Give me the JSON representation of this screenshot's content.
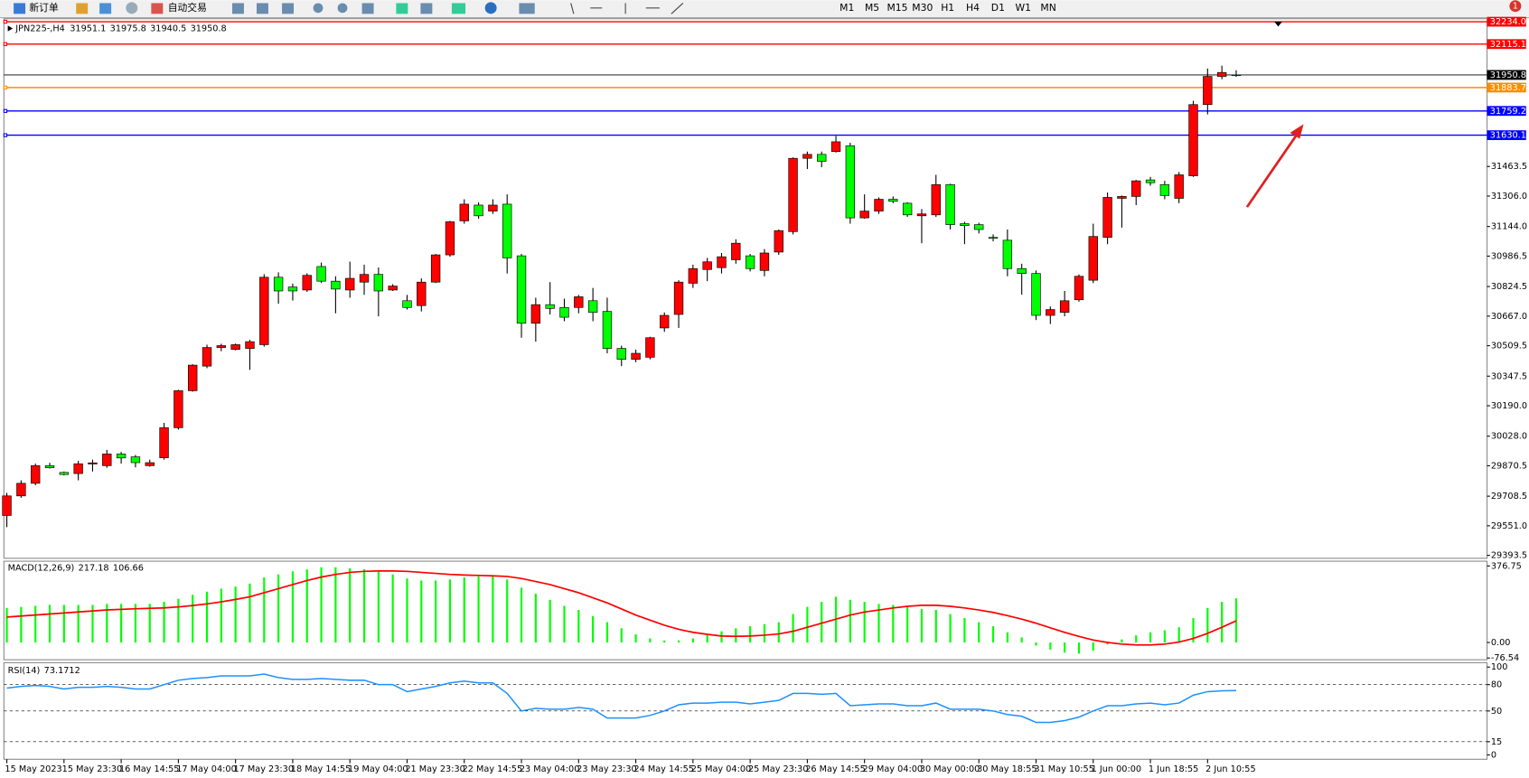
{
  "toolbar": {
    "buttons": [
      "新订单",
      "自动交易"
    ],
    "timeframes": [
      "M1",
      "M5",
      "M15",
      "M30",
      "H1",
      "H4",
      "D1",
      "W1",
      "MN"
    ],
    "badge": 1
  },
  "chart_data": [
    {
      "type": "candlestick",
      "title": "JPN225-,H4",
      "categories": [
        "15 May 2023",
        null,
        null,
        null,
        "15 May 23:30",
        null,
        null,
        null,
        "16 May 14:55",
        null,
        null,
        null,
        "17 May 04:00",
        null,
        null,
        null,
        "17 May 23:30",
        null,
        null,
        null,
        "18 May 14:55",
        null,
        null,
        null,
        "19 May 04:00",
        null,
        null,
        null,
        "21 May 23:30",
        null,
        null,
        null,
        "22 May 14:55",
        null,
        null,
        null,
        "23 May 04:00",
        null,
        null,
        null,
        "23 May 23:30",
        null,
        null,
        null,
        "24 May 14:55",
        null,
        null,
        null,
        "25 May 04:00",
        null,
        null,
        null,
        "25 May 23:30",
        null,
        null,
        null,
        "26 May 14:55",
        null,
        null,
        null,
        "29 May 04:00",
        null,
        null,
        null,
        "30 May 00:00",
        null,
        null,
        null,
        "30 May 18:55",
        null,
        null,
        null,
        "31 May 10:55",
        null,
        null,
        null,
        "1 Jun 00:00",
        null,
        null,
        null,
        "1 Jun 18:55",
        null,
        null,
        null,
        "2 Jun 10:55",
        null,
        null
      ],
      "open": [
        29606,
        29710,
        29777,
        29871,
        29835,
        29829,
        29880,
        29871,
        29933,
        29918,
        29871,
        29913,
        30073,
        30270,
        30401,
        30500,
        30490,
        30495,
        30515,
        30874,
        30822,
        30806,
        30931,
        30853,
        30806,
        30848,
        30889,
        30806,
        30749,
        30723,
        30848,
        30993,
        31174,
        31258,
        31226,
        31263,
        30988,
        30629,
        30728,
        30713,
        30713,
        30749,
        30692,
        30495,
        30437,
        30448,
        30604,
        30676,
        30842,
        30915,
        30925,
        30967,
        30988,
        30910,
        31008,
        31117,
        31507,
        31528,
        31543,
        31574,
        31190,
        31226,
        31289,
        31268,
        31201,
        31206,
        31367,
        31159,
        31154,
        31086,
        31071,
        30920,
        30894,
        30671,
        30687,
        30754,
        30858,
        31086,
        31294,
        31304,
        31392,
        31367,
        31294,
        31414,
        31793,
        31943,
        31951.1
      ],
      "high": [
        29726,
        29793,
        29882,
        29886,
        29840,
        29897,
        29903,
        29955,
        29944,
        29928,
        29903,
        30099,
        30275,
        30411,
        30515,
        30520,
        30521,
        30541,
        30890,
        30900,
        30840,
        30895,
        30952,
        30879,
        30957,
        30941,
        30926,
        30837,
        30780,
        30868,
        30998,
        31174,
        31289,
        31273,
        31289,
        31315,
        30998,
        30765,
        30848,
        30760,
        30780,
        30817,
        30765,
        30510,
        30489,
        30557,
        30687,
        30858,
        30941,
        30977,
        31003,
        31076,
        30998,
        31024,
        31128,
        31512,
        31543,
        31543,
        31626,
        31590,
        31315,
        31299,
        31304,
        31273,
        31237,
        31419,
        31372,
        31169,
        31164,
        31102,
        31128,
        30946,
        30910,
        30718,
        30801,
        30889,
        31159,
        31325,
        31309,
        31392,
        31408,
        31387,
        31434,
        31813,
        31985,
        32000,
        31975.8
      ],
      "low": [
        29544,
        29700,
        29767,
        29855,
        29819,
        29793,
        29840,
        29860,
        29882,
        29862,
        29866,
        29903,
        30063,
        30265,
        30390,
        30480,
        30485,
        30381,
        30505,
        30733,
        30750,
        30796,
        30843,
        30682,
        30765,
        30780,
        30666,
        30801,
        30702,
        30692,
        30843,
        30983,
        31159,
        31185,
        31211,
        30894,
        30552,
        30531,
        30676,
        30640,
        30682,
        30640,
        30469,
        30401,
        30422,
        30437,
        30583,
        30604,
        30817,
        30853,
        30894,
        30946,
        30905,
        30879,
        30993,
        31102,
        31450,
        31460,
        31538,
        31159,
        31185,
        31211,
        31268,
        31195,
        31055,
        31195,
        31128,
        31050,
        31107,
        31065,
        30879,
        30781,
        30646,
        30625,
        30666,
        30744,
        30843,
        31050,
        31138,
        31258,
        31361,
        31289,
        31268,
        31408,
        31741,
        31928,
        31940.5
      ],
      "close": [
        29710,
        29777,
        29871,
        29860,
        29824,
        29881,
        29886,
        29933,
        29912,
        29887,
        29887,
        30073,
        30270,
        30406,
        30500,
        30510,
        30515,
        30531,
        30874,
        30801,
        30801,
        30884,
        30853,
        30811,
        30868,
        30889,
        30801,
        30827,
        30713,
        30848,
        30993,
        31169,
        31263,
        31201,
        31258,
        30977,
        30629,
        30728,
        30708,
        30661,
        30770,
        30687,
        30495,
        30437,
        30469,
        30552,
        30671,
        30848,
        30920,
        30956,
        30983,
        31055,
        30920,
        31003,
        31122,
        31507,
        31528,
        31491,
        31595,
        31190,
        31226,
        31289,
        31278,
        31206,
        31211,
        31367,
        31154,
        31149,
        31128,
        31081,
        30920,
        30894,
        30671,
        30702,
        30749,
        30879,
        31091,
        31299,
        31304,
        31387,
        31377,
        31309,
        31419,
        31793,
        31943,
        31964,
        31950.8
      ],
      "up_color": "#ff0000",
      "down_color": "#00ff00",
      "ylim": [
        29378,
        32250
      ],
      "yticks": [
        31463.5,
        {
          "value": 31306,
          "label": "31306.0"
        },
        {
          "value": 31144,
          "label": "31144.0"
        },
        30986.5,
        30824.5,
        {
          "value": 30667,
          "label": "30667.0"
        },
        30509.5,
        30347.5,
        {
          "value": 30190,
          "label": "30190.0"
        },
        {
          "value": 30028,
          "label": "30028.0"
        },
        29870.5,
        29708.5,
        {
          "value": 29551,
          "label": "29551.0"
        },
        29393.5
      ],
      "levels": [
        {
          "value": 32234,
          "label": "32234.0",
          "color": "#ff0000"
        },
        {
          "value": 32115.1,
          "label": "32115.1",
          "color": "#ff0000"
        },
        {
          "value": 31883.7,
          "label": "31883.7",
          "color": "#ff8c00"
        },
        {
          "value": 31759.2,
          "label": "31759.2",
          "color": "#0000ff"
        },
        {
          "value": 31630.1,
          "label": "31630.1",
          "color": "#0000ff"
        }
      ]
    },
    {
      "type": "macd",
      "title": "MACD(12,26,9)",
      "histogram": [
        170,
        175,
        180,
        185,
        185,
        185,
        185,
        190,
        190,
        190,
        190,
        200,
        215,
        235,
        250,
        265,
        275,
        290,
        320,
        335,
        350,
        360,
        370,
        370,
        365,
        360,
        350,
        335,
        315,
        305,
        305,
        310,
        320,
        325,
        325,
        310,
        270,
        240,
        210,
        180,
        160,
        130,
        100,
        70,
        40,
        20,
        10,
        10,
        20,
        40,
        55,
        70,
        80,
        90,
        100,
        140,
        175,
        200,
        225,
        210,
        200,
        190,
        185,
        175,
        165,
        160,
        140,
        120,
        100,
        80,
        50,
        25,
        -15,
        -35,
        -50,
        -55,
        -40,
        -10,
        15,
        35,
        50,
        60,
        75,
        120,
        170,
        200,
        217.18
      ],
      "signal": [
        125,
        130,
        135,
        140,
        145,
        150,
        155,
        160,
        163,
        166,
        168,
        170,
        175,
        182,
        190,
        200,
        212,
        225,
        245,
        265,
        285,
        305,
        322,
        335,
        345,
        350,
        352,
        352,
        350,
        345,
        340,
        335,
        332,
        330,
        328,
        325,
        315,
        300,
        285,
        265,
        245,
        220,
        195,
        165,
        135,
        110,
        85,
        65,
        50,
        40,
        32,
        30,
        32,
        36,
        42,
        55,
        75,
        95,
        115,
        135,
        150,
        160,
        170,
        178,
        183,
        183,
        178,
        170,
        160,
        148,
        132,
        115,
        95,
        72,
        50,
        30,
        12,
        0,
        -8,
        -12,
        -12,
        -8,
        2,
        20,
        45,
        75,
        106.66
      ],
      "histogram_color": "#00ff00",
      "signal_color": "#ff0000",
      "ylim": [
        -85,
        400
      ],
      "yticks": [
        376.75,
        {
          "value": 0,
          "label": "0.00"
        },
        -76.54
      ]
    },
    {
      "type": "line",
      "title": "RSI(14)",
      "values": [
        76,
        78,
        79,
        78,
        75,
        77,
        77,
        78,
        77,
        75,
        75,
        80,
        85,
        87,
        88,
        90,
        90,
        90,
        92,
        88,
        86,
        86,
        87,
        86,
        85,
        85,
        80,
        80,
        72,
        75,
        78,
        82,
        84,
        82,
        82,
        70,
        50,
        53,
        52,
        52,
        54,
        52,
        42,
        42,
        42,
        45,
        50,
        57,
        59,
        59,
        60,
        60,
        58,
        60,
        62,
        70,
        70,
        69,
        70,
        56,
        57,
        58,
        58,
        56,
        56,
        59,
        52,
        52,
        52,
        50,
        46,
        44,
        37,
        37,
        39,
        43,
        50,
        56,
        56,
        58,
        59,
        57,
        59,
        68,
        72,
        73,
        73.1712
      ],
      "color": "#1e90ff",
      "ylim": [
        -5,
        105
      ],
      "yticks": [
        100,
        80,
        50,
        15,
        0
      ],
      "grid": true
    }
  ]
}
